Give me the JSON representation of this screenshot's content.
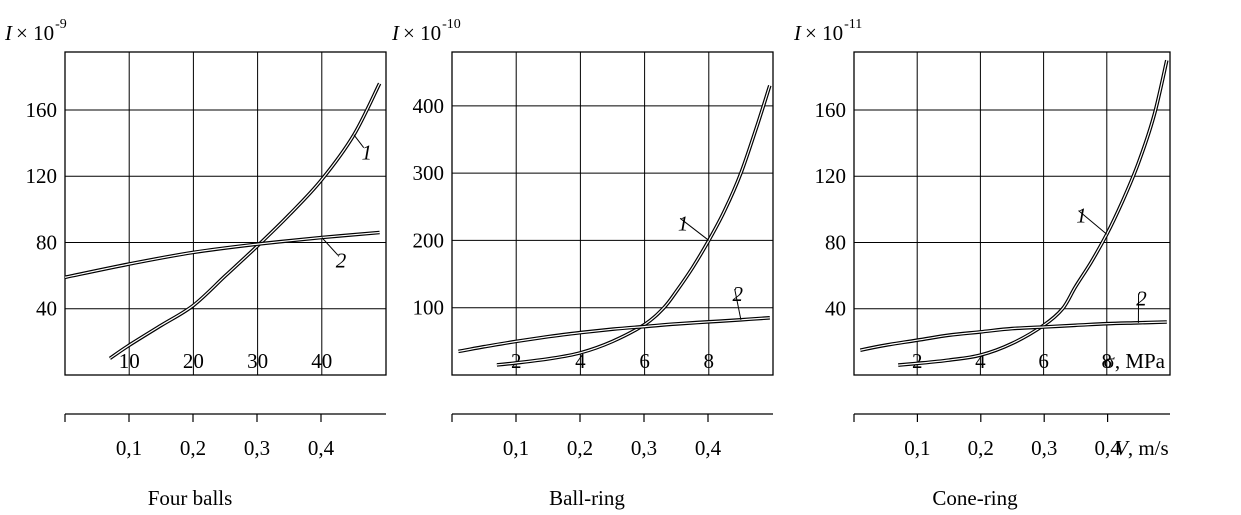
{
  "chart_data": [
    {
      "type": "line",
      "title": "Four balls",
      "ylabel": "I",
      "ylabel_multiplier": "× 10",
      "ylabel_exponent": "-9",
      "ylim": [
        0,
        195
      ],
      "yticks": [
        40,
        80,
        120,
        160
      ],
      "xticks_sigma": [
        10,
        20,
        30,
        40
      ],
      "xlim_sigma": [
        0,
        50
      ],
      "xticks_v": [
        "0,1",
        "0,2",
        "0,3",
        "0,4"
      ],
      "xticks_v_values": [
        0.1,
        0.2,
        0.3,
        0.4
      ],
      "sigma_axis_label": "",
      "v_axis_label_symbol": "",
      "v_axis_label_unit": "",
      "series": [
        {
          "name": "1",
          "x": [
            7,
            10,
            15,
            20,
            25,
            30,
            35,
            40,
            45,
            49
          ],
          "y": [
            10,
            18,
            30,
            42,
            60,
            78,
            97,
            118,
            145,
            176
          ]
        },
        {
          "name": "2",
          "x": [
            0,
            10,
            20,
            30,
            40,
            49
          ],
          "y": [
            59,
            67,
            74,
            79,
            83,
            86
          ]
        }
      ],
      "label_positions": [
        {
          "name": "1",
          "x": 47,
          "y": 130
        },
        {
          "name": "2",
          "x": 43,
          "y": 65
        }
      ]
    },
    {
      "type": "line",
      "title": "Ball-ring",
      "ylabel": "I",
      "ylabel_multiplier": "× 10",
      "ylabel_exponent": "-10",
      "ylim": [
        0,
        480
      ],
      "yticks": [
        100,
        200,
        300,
        400
      ],
      "xticks_sigma": [
        2,
        4,
        6,
        8
      ],
      "xlim_sigma": [
        0,
        10
      ],
      "xticks_v": [
        "0,1",
        "0,2",
        "0,3",
        "0,4"
      ],
      "xticks_v_values": [
        0.1,
        0.2,
        0.3,
        0.4
      ],
      "sigma_axis_label": "",
      "v_axis_label_symbol": "",
      "v_axis_label_unit": "",
      "series": [
        {
          "name": "1",
          "x": [
            1.4,
            2,
            3,
            4,
            5,
            6,
            6.6,
            7,
            7.5,
            8,
            8.5,
            9,
            9.5,
            9.9
          ],
          "y": [
            15,
            18,
            24,
            33,
            50,
            75,
            100,
            125,
            160,
            200,
            245,
            300,
            370,
            430
          ]
        },
        {
          "name": "2",
          "x": [
            0.2,
            1,
            2,
            3,
            4,
            5,
            6,
            7,
            8,
            9,
            9.9
          ],
          "y": [
            35,
            42,
            50,
            57,
            63,
            68,
            72,
            76,
            79,
            82,
            85
          ]
        }
      ],
      "label_positions": [
        {
          "name": "1",
          "x": 7.2,
          "y": 215
        },
        {
          "name": "2",
          "x": 8.9,
          "y": 110
        }
      ]
    },
    {
      "type": "line",
      "title": "Cone-ring",
      "ylabel": "I",
      "ylabel_multiplier": "× 10",
      "ylabel_exponent": "-11",
      "ylim": [
        0,
        195
      ],
      "yticks": [
        40,
        80,
        120,
        160
      ],
      "xticks_sigma": [
        2,
        4,
        6,
        8
      ],
      "xlim_sigma": [
        0,
        10
      ],
      "xticks_v": [
        "0,1",
        "0,2",
        "0,3",
        "0,4"
      ],
      "xticks_v_values": [
        0.1,
        0.2,
        0.3,
        0.4
      ],
      "sigma_axis_label": "σ, MPa",
      "v_axis_label_symbol": "V",
      "v_axis_label_unit": ", m/s",
      "series": [
        {
          "name": "1",
          "x": [
            1.4,
            2,
            3,
            4,
            5,
            6,
            6.6,
            7,
            7.5,
            8,
            8.5,
            9,
            9.5,
            9.9
          ],
          "y": [
            6,
            7,
            9,
            12,
            19,
            30,
            40,
            53,
            68,
            85,
            105,
            128,
            157,
            190
          ]
        },
        {
          "name": "2",
          "x": [
            0.2,
            1,
            2,
            3,
            4,
            5,
            6,
            7,
            8,
            9,
            9.9
          ],
          "y": [
            15,
            18,
            21,
            24,
            26,
            28,
            29,
            30,
            31,
            31.5,
            32
          ]
        }
      ],
      "label_positions": [
        {
          "name": "1",
          "x": 7.2,
          "y": 92
        },
        {
          "name": "2",
          "x": 9.1,
          "y": 42
        }
      ]
    }
  ]
}
